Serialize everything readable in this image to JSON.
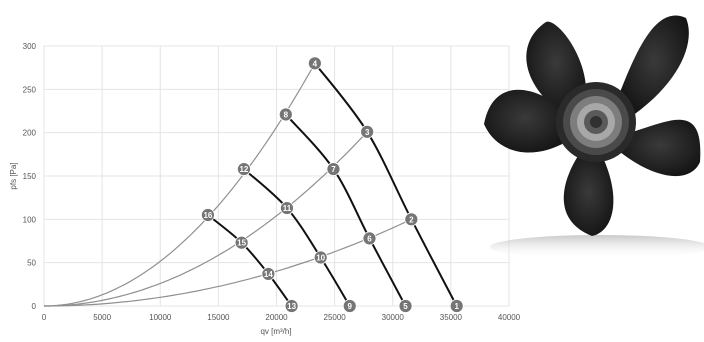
{
  "chart_data": {
    "type": "line",
    "title": "",
    "xlabel": "qv [m³/h]",
    "ylabel": "pfs [Pa]",
    "xlim": [
      0,
      40000
    ],
    "ylim": [
      0,
      300
    ],
    "x_ticks": [
      "0",
      "5000",
      "10000",
      "15000",
      "20000",
      "25000",
      "30000",
      "35000",
      "40000"
    ],
    "y_ticks": [
      "0",
      "50",
      "100",
      "150",
      "200",
      "250",
      "300"
    ],
    "grid": true,
    "operating_points": [
      {
        "label": "1",
        "x": 35500,
        "y": 0
      },
      {
        "label": "2",
        "x": 31600,
        "y": 100
      },
      {
        "label": "3",
        "x": 27800,
        "y": 201
      },
      {
        "label": "4",
        "x": 23300,
        "y": 280
      },
      {
        "label": "5",
        "x": 31100,
        "y": 0
      },
      {
        "label": "6",
        "x": 28000,
        "y": 78
      },
      {
        "label": "7",
        "x": 24900,
        "y": 158
      },
      {
        "label": "8",
        "x": 20800,
        "y": 221
      },
      {
        "label": "9",
        "x": 26300,
        "y": 0
      },
      {
        "label": "10",
        "x": 23800,
        "y": 56
      },
      {
        "label": "11",
        "x": 20900,
        "y": 113
      },
      {
        "label": "12",
        "x": 17200,
        "y": 158
      },
      {
        "label": "13",
        "x": 21300,
        "y": 0
      },
      {
        "label": "14",
        "x": 19300,
        "y": 37
      },
      {
        "label": "15",
        "x": 17000,
        "y": 73
      },
      {
        "label": "16",
        "x": 14100,
        "y": 105
      }
    ],
    "fan_curves": [
      {
        "points": [
          "4",
          "3",
          "2",
          "1"
        ]
      },
      {
        "points": [
          "8",
          "7",
          "6",
          "5"
        ]
      },
      {
        "points": [
          "12",
          "11",
          "10",
          "9"
        ]
      },
      {
        "points": [
          "16",
          "15",
          "14",
          "13"
        ]
      }
    ],
    "system_curves": [
      {
        "through": "4"
      },
      {
        "through": "3"
      },
      {
        "through": "2"
      }
    ],
    "colors": {
      "fan_curve": "#111111",
      "system_curve": "#909090",
      "marker_fill": "#757575",
      "marker_text": "#ffffff",
      "grid": "#e4e4e4",
      "fan_image_dark": "#222222"
    }
  },
  "fan_image": {
    "description_icon": "axial-fan-impeller-icon"
  }
}
